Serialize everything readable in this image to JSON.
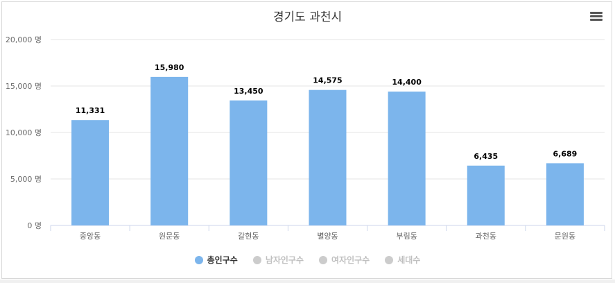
{
  "chart_data": {
    "type": "bar",
    "title": "경기도 과천시",
    "categories": [
      "중앙동",
      "원문동",
      "갈현동",
      "별양동",
      "부림동",
      "과천동",
      "문원동"
    ],
    "series": [
      {
        "name": "총인구수",
        "values": [
          11331,
          15980,
          13450,
          14575,
          14400,
          6435,
          6689
        ],
        "color": "#7cb5ec",
        "visible": true
      }
    ],
    "value_labels": [
      "11,331",
      "15,980",
      "13,450",
      "14,575",
      "14,400",
      "6,435",
      "6,689"
    ],
    "y_ticks": [
      0,
      5000,
      10000,
      15000,
      20000
    ],
    "y_tick_labels": [
      "0 명",
      "5,000 명",
      "10,000 명",
      "15,000 명",
      "20,000 명"
    ],
    "ylim": [
      0,
      20000
    ],
    "grid": true,
    "legend_position": "bottom"
  },
  "legend": [
    {
      "label": "총인구수",
      "color": "#7cb5ec",
      "active": true
    },
    {
      "label": "남자인구수",
      "color": "#cccccc",
      "active": false
    },
    {
      "label": "여자인구수",
      "color": "#cccccc",
      "active": false
    },
    {
      "label": "세대수",
      "color": "#cccccc",
      "active": false
    }
  ],
  "menu_icon": "hamburger-menu-icon"
}
